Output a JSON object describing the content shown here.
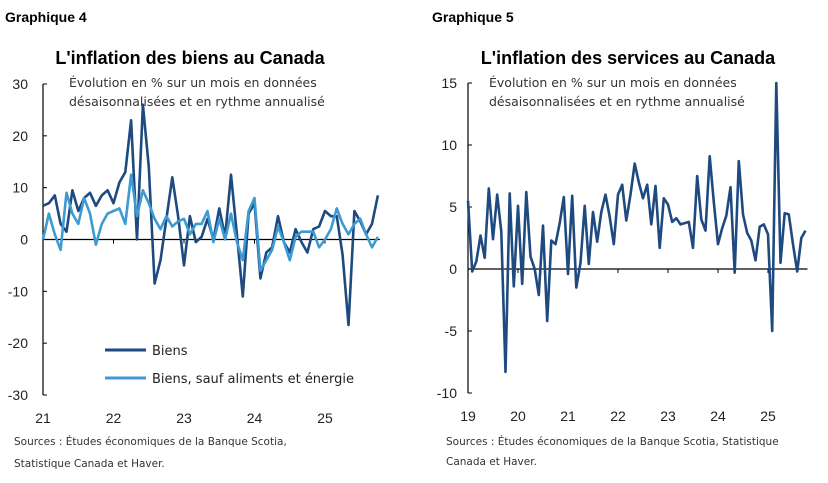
{
  "chart_data": [
    {
      "type": "line",
      "figure_label": "Graphique 4",
      "title": "L'inflation des biens au Canada",
      "subtitle": [
        "Évolution en % sur un mois en données",
        "désaisonnalisées et en rythme annualisé"
      ],
      "x_tick_labels": [
        "21",
        "22",
        "23",
        "24",
        "25"
      ],
      "y_tick_labels": [
        "30",
        "20",
        "10",
        "0",
        "-10",
        "-20",
        "-30"
      ],
      "ylim": [
        -30,
        30
      ],
      "x_start": "2021-01",
      "frequency": "monthly",
      "legend_position": "bottom-center",
      "series": [
        {
          "name": "Biens",
          "color": "#1f4a80",
          "values": [
            6.5,
            7,
            8.5,
            3,
            1.5,
            9.5,
            5.5,
            8,
            9,
            6.5,
            8.5,
            9.5,
            7,
            11,
            13,
            23,
            0,
            26,
            14,
            -8.5,
            -4,
            4,
            12,
            4.5,
            -5,
            4.5,
            -0.5,
            0.5,
            4,
            0,
            6,
            0.5,
            12.5,
            1,
            -11,
            5,
            7,
            -7.5,
            -2.5,
            -1.5,
            4.5,
            -0.5,
            -2.5,
            2,
            -0.5,
            -2.5,
            2,
            2.5,
            5.5,
            4.5,
            4.5,
            -3,
            -16.5,
            5.5,
            3.5,
            1,
            3,
            8.5
          ]
        },
        {
          "name": "Biens, sauf aliments et énergie",
          "color": "#3d9ad3",
          "values": [
            0,
            5,
            1,
            -2,
            9,
            5,
            3,
            8,
            5,
            -1,
            3,
            5,
            5.5,
            6,
            3,
            12.5,
            4.5,
            9.5,
            7,
            4,
            2,
            4.5,
            2.5,
            3.5,
            4,
            1,
            3,
            3,
            5.5,
            -0.5,
            4,
            0,
            5,
            -0.5,
            -4,
            5.5,
            8,
            -6,
            -4,
            -2,
            2.5,
            -0.5,
            -4,
            0.5,
            1.5,
            1.5,
            1.5,
            -1.5,
            0,
            2,
            6,
            3,
            1,
            3,
            4,
            1,
            -1.5,
            0.5
          ]
        }
      ],
      "source": [
        "Sources : Études économiques de la Banque Scotia,",
        "Statistique Canada et Haver."
      ]
    },
    {
      "type": "line",
      "figure_label": "Graphique 5",
      "title": "L'inflation des services au Canada",
      "subtitle": [
        "Évolution en % sur un mois en données",
        "désaisonnalisées et en rythme annualisé"
      ],
      "x_tick_labels": [
        "19",
        "20",
        "21",
        "22",
        "23",
        "24",
        "25"
      ],
      "y_tick_labels": [
        "15",
        "10",
        "5",
        "0",
        "-5",
        "-10"
      ],
      "ylim": [
        -10,
        15
      ],
      "x_start": "2019-01",
      "frequency": "monthly",
      "series": [
        {
          "color": "#1f4a80",
          "values": [
            5.5,
            -0.2,
            0.6,
            2.7,
            0.9,
            6.5,
            2.4,
            6,
            3,
            -8.3,
            6.1,
            -1.4,
            5.1,
            -1.2,
            6.2,
            1,
            0,
            -2.1,
            3.5,
            -4.2,
            2.3,
            2,
            3.7,
            5.8,
            -0.4,
            5.9,
            -1.5,
            0.5,
            5.1,
            0.4,
            4.6,
            2.2,
            4.6,
            6,
            4.2,
            2,
            6,
            6.8,
            3.9,
            6,
            8.5,
            7,
            5.7,
            6.8,
            3.6,
            6.7,
            1.7,
            5.7,
            5.2,
            3.8,
            4.1,
            3.6,
            3.7,
            3.8,
            1.7,
            7.5,
            4,
            3.1,
            9.1,
            5.4,
            2,
            3.3,
            4.3,
            6.6,
            -0.3,
            8.7,
            4.4,
            2.9,
            2.3,
            0.7,
            3.4,
            3.6,
            2.8,
            -5,
            15,
            0.5,
            4.5,
            4.4,
            2,
            -0.2,
            2.5,
            3.1
          ]
        }
      ],
      "source": [
        "Sources : Études économiques de la Banque Scotia, Statistique",
        "Canada et Haver."
      ]
    }
  ]
}
